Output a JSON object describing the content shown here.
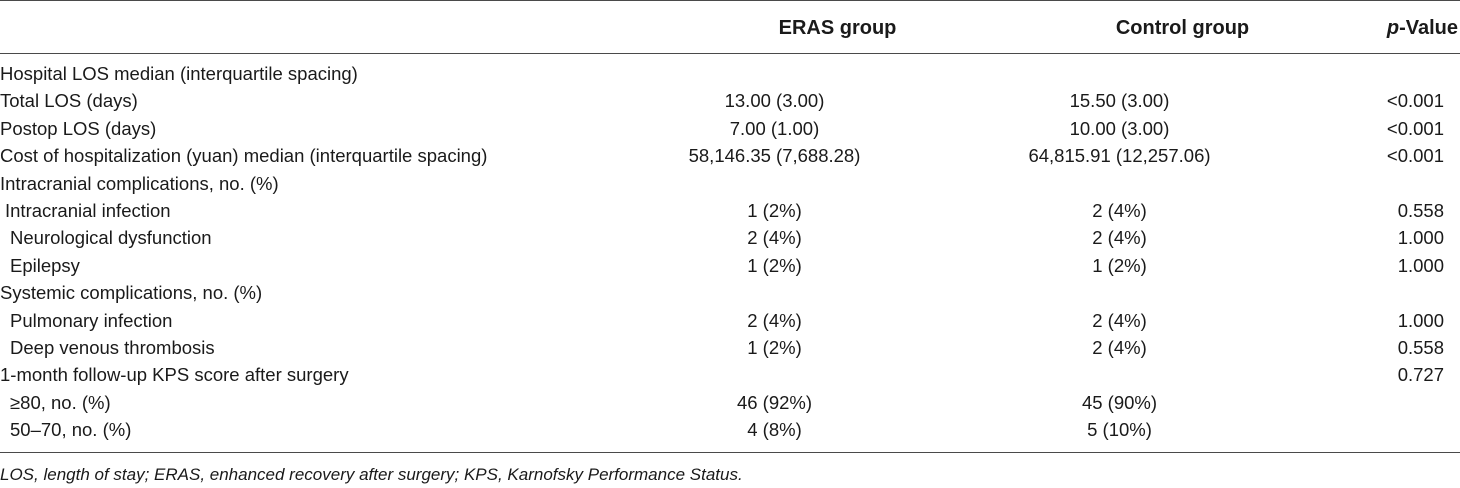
{
  "header": {
    "eras": "ERAS group",
    "control": "Control group",
    "p_italic": "p",
    "p_rest": "-Value"
  },
  "rows": [
    {
      "label": "Hospital LOS median (interquartile spacing)",
      "eras": "",
      "control": "",
      "p": "",
      "indent": 0
    },
    {
      "label": "Total LOS (days)",
      "eras": "13.00 (3.00)",
      "control": "15.50 (3.00)",
      "p": "<0.001",
      "indent": 0
    },
    {
      "label": "Postop LOS (days)",
      "eras": "7.00 (1.00)",
      "control": "10.00 (3.00)",
      "p": "<0.001",
      "indent": 0
    },
    {
      "label": "Cost of hospitalization (yuan) median (interquartile spacing)",
      "eras": "58,146.35 (7,688.28)",
      "control": "64,815.91 (12,257.06)",
      "p": "<0.001",
      "indent": 0
    },
    {
      "label": "Intracranial complications, no. (%)",
      "eras": "",
      "control": "",
      "p": "",
      "indent": 0
    },
    {
      "label": "Intracranial infection",
      "eras": "1 (2%)",
      "control": "2 (4%)",
      "p": "0.558",
      "indent": 1
    },
    {
      "label": "Neurological dysfunction",
      "eras": "2 (4%)",
      "control": "2 (4%)",
      "p": "1.000",
      "indent": 2
    },
    {
      "label": "Epilepsy",
      "eras": "1 (2%)",
      "control": "1 (2%)",
      "p": "1.000",
      "indent": 2
    },
    {
      "label": "Systemic complications, no. (%)",
      "eras": "",
      "control": "",
      "p": "",
      "indent": 0
    },
    {
      "label": "Pulmonary infection",
      "eras": "2 (4%)",
      "control": "2 (4%)",
      "p": "1.000",
      "indent": 2
    },
    {
      "label": "Deep venous thrombosis",
      "eras": "1 (2%)",
      "control": "2 (4%)",
      "p": "0.558",
      "indent": 2
    },
    {
      "label": "1-month follow-up KPS score after surgery",
      "eras": "",
      "control": "",
      "p": "0.727",
      "indent": 0
    },
    {
      "label": "≥80, no. (%)",
      "eras": "46 (92%)",
      "control": "45 (90%)",
      "p": "",
      "indent": 2
    },
    {
      "label": "50–70, no. (%)",
      "eras": "4 (8%)",
      "control": "5 (10%)",
      "p": "",
      "indent": 2
    }
  ],
  "footnote": "LOS, length of stay; ERAS, enhanced recovery after surgery; KPS, Karnofsky Performance Status."
}
